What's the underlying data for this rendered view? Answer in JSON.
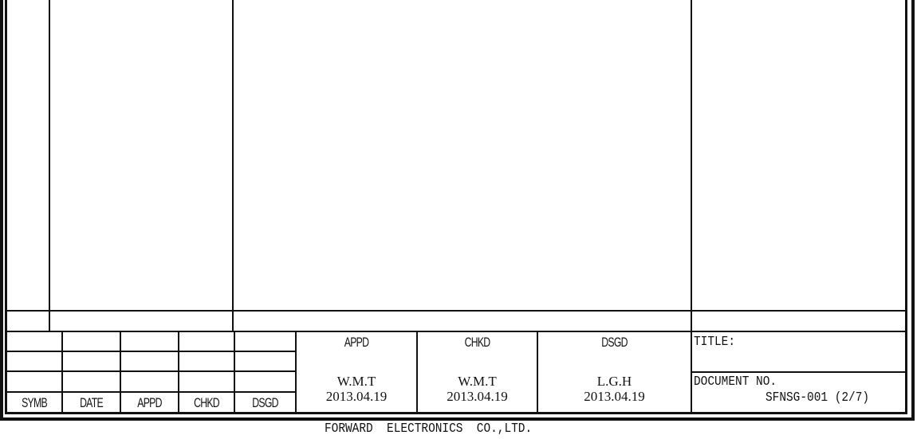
{
  "revision_block": {
    "headers": [
      "SYMB",
      "DATE",
      "APPD",
      "CHKD",
      "DSGD"
    ]
  },
  "approvals": [
    {
      "label": "APPD",
      "name": "W.M.T",
      "date": "2013.04.19"
    },
    {
      "label": "CHKD",
      "name": "W.M.T",
      "date": "2013.04.19"
    },
    {
      "label": "DSGD",
      "name": "L.G.H",
      "date": "2013.04.19"
    }
  ],
  "title_block": {
    "title_label": "TITLE:",
    "document_label": "DOCUMENT NO.",
    "document_number": "SFNSG-001 (2/7)"
  },
  "footer": {
    "company": "FORWARD  ELECTRONICS  CO.,LTD."
  }
}
